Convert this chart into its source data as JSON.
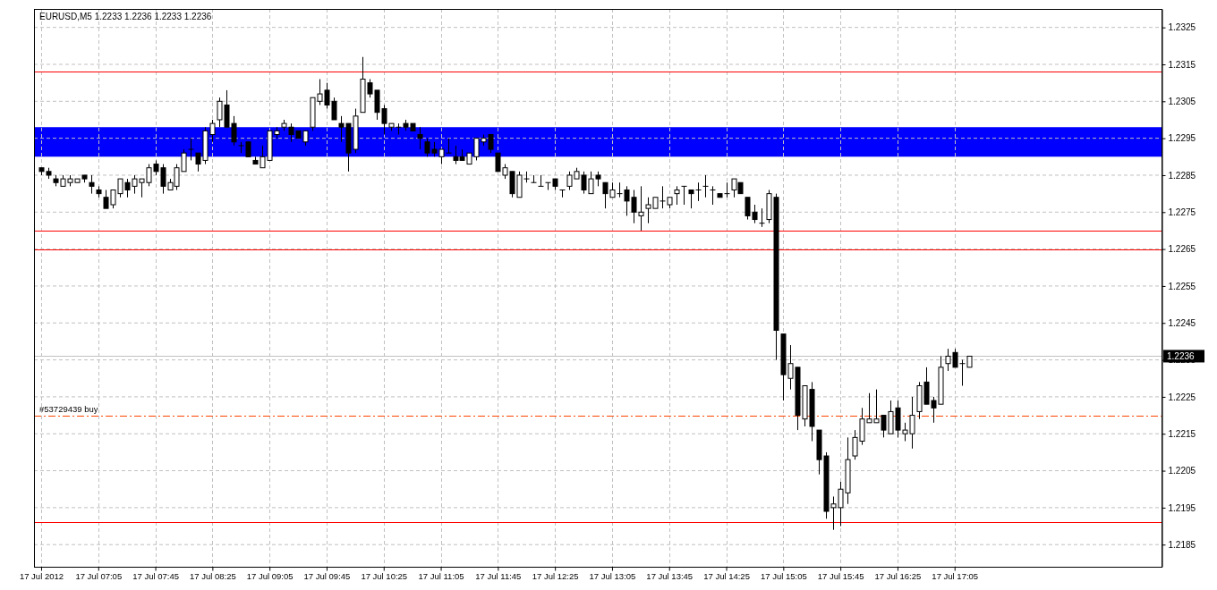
{
  "chart_data": {
    "type": "candlestick",
    "title": "EURUSD,M5  1.2233 1.2236 1.2233 1.2236",
    "x": [
      "2012-07-17T06:25",
      "2012-07-17T06:30",
      "2012-07-17T06:35",
      "2012-07-17T06:40",
      "2012-07-17T06:45",
      "2012-07-17T06:50",
      "2012-07-17T06:55",
      "2012-07-17T07:00",
      "2012-07-17T07:05",
      "2012-07-17T07:10",
      "2012-07-17T07:15",
      "2012-07-17T07:20",
      "2012-07-17T07:25",
      "2012-07-17T07:30",
      "2012-07-17T07:35",
      "2012-07-17T07:40",
      "2012-07-17T07:45",
      "2012-07-17T07:50",
      "2012-07-17T07:55",
      "2012-07-17T08:00",
      "2012-07-17T08:05",
      "2012-07-17T08:10",
      "2012-07-17T08:15",
      "2012-07-17T08:20",
      "2012-07-17T08:25",
      "2012-07-17T08:30",
      "2012-07-17T08:35",
      "2012-07-17T08:40",
      "2012-07-17T08:45",
      "2012-07-17T08:50",
      "2012-07-17T08:55",
      "2012-07-17T09:00",
      "2012-07-17T09:05",
      "2012-07-17T09:10",
      "2012-07-17T09:15",
      "2012-07-17T09:20",
      "2012-07-17T09:25",
      "2012-07-17T09:30",
      "2012-07-17T09:35",
      "2012-07-17T09:40",
      "2012-07-17T09:45",
      "2012-07-17T09:50",
      "2012-07-17T09:55",
      "2012-07-17T10:00",
      "2012-07-17T10:05",
      "2012-07-17T10:10",
      "2012-07-17T10:15",
      "2012-07-17T10:20",
      "2012-07-17T10:25",
      "2012-07-17T10:30",
      "2012-07-17T10:35",
      "2012-07-17T10:40",
      "2012-07-17T10:45",
      "2012-07-17T10:50",
      "2012-07-17T10:55",
      "2012-07-17T11:00",
      "2012-07-17T11:05",
      "2012-07-17T11:10",
      "2012-07-17T11:15",
      "2012-07-17T11:20",
      "2012-07-17T11:25",
      "2012-07-17T11:30",
      "2012-07-17T11:35",
      "2012-07-17T11:40",
      "2012-07-17T11:45",
      "2012-07-17T11:50",
      "2012-07-17T11:55",
      "2012-07-17T12:00",
      "2012-07-17T12:05",
      "2012-07-17T12:10",
      "2012-07-17T12:15",
      "2012-07-17T12:20",
      "2012-07-17T12:25",
      "2012-07-17T12:30",
      "2012-07-17T12:35",
      "2012-07-17T12:40",
      "2012-07-17T12:45",
      "2012-07-17T12:50",
      "2012-07-17T12:55",
      "2012-07-17T13:00",
      "2012-07-17T13:05",
      "2012-07-17T13:10",
      "2012-07-17T13:15",
      "2012-07-17T13:20",
      "2012-07-17T13:25",
      "2012-07-17T13:30",
      "2012-07-17T13:35",
      "2012-07-17T13:40",
      "2012-07-17T13:45",
      "2012-07-17T13:50",
      "2012-07-17T13:55",
      "2012-07-17T14:00",
      "2012-07-17T14:05",
      "2012-07-17T14:10",
      "2012-07-17T14:15",
      "2012-07-17T14:20",
      "2012-07-17T14:25",
      "2012-07-17T14:30",
      "2012-07-17T14:35",
      "2012-07-17T14:40",
      "2012-07-17T14:45",
      "2012-07-17T14:50",
      "2012-07-17T14:55",
      "2012-07-17T15:00",
      "2012-07-17T15:05",
      "2012-07-17T15:10",
      "2012-07-17T15:15",
      "2012-07-17T15:20",
      "2012-07-17T15:25",
      "2012-07-17T15:30",
      "2012-07-17T15:35",
      "2012-07-17T15:40",
      "2012-07-17T15:45",
      "2012-07-17T15:50",
      "2012-07-17T15:55",
      "2012-07-17T16:00",
      "2012-07-17T16:05",
      "2012-07-17T16:10",
      "2012-07-17T16:15",
      "2012-07-17T16:20",
      "2012-07-17T16:25",
      "2012-07-17T16:30",
      "2012-07-17T16:35",
      "2012-07-17T16:40",
      "2012-07-17T16:45",
      "2012-07-17T16:50",
      "2012-07-17T16:55",
      "2012-07-17T17:00",
      "2012-07-17T17:05",
      "2012-07-17T17:10",
      "2012-07-17T17:15"
    ],
    "ohlc": [
      [
        1.2287,
        1.2287,
        1.2285,
        1.2286
      ],
      [
        1.2286,
        1.2287,
        1.2284,
        1.2285
      ],
      [
        1.2284,
        1.2285,
        1.2282,
        1.2283
      ],
      [
        1.2282,
        1.2285,
        1.2282,
        1.2284
      ],
      [
        1.2283,
        1.2285,
        1.2282,
        1.2284
      ],
      [
        1.2283,
        1.2284,
        1.2283,
        1.2284
      ],
      [
        1.2285,
        1.2285,
        1.2283,
        1.2284
      ],
      [
        1.2283,
        1.2285,
        1.228,
        1.2282
      ],
      [
        1.2281,
        1.2282,
        1.2279,
        1.228
      ],
      [
        1.2279,
        1.2281,
        1.2276,
        1.2276
      ],
      [
        1.2277,
        1.2281,
        1.2276,
        1.2281
      ],
      [
        1.228,
        1.2284,
        1.2279,
        1.2284
      ],
      [
        1.2283,
        1.2284,
        1.2279,
        1.2281
      ],
      [
        1.2282,
        1.2285,
        1.228,
        1.2284
      ],
      [
        1.2283,
        1.2284,
        1.2279,
        1.2284
      ],
      [
        1.2283,
        1.2288,
        1.2282,
        1.2287
      ],
      [
        1.2288,
        1.2289,
        1.2285,
        1.2286
      ],
      [
        1.2287,
        1.2288,
        1.228,
        1.2282
      ],
      [
        1.2281,
        1.2284,
        1.2281,
        1.2283
      ],
      [
        1.2282,
        1.2288,
        1.2281,
        1.2287
      ],
      [
        1.2286,
        1.2292,
        1.2286,
        1.2291
      ],
      [
        1.2292,
        1.2295,
        1.2289,
        1.2292
      ],
      [
        1.2291,
        1.2291,
        1.2286,
        1.2288
      ],
      [
        1.2289,
        1.2298,
        1.2288,
        1.2297
      ],
      [
        1.2296,
        1.23,
        1.2294,
        1.2299
      ],
      [
        1.23,
        1.2306,
        1.2298,
        1.2305
      ],
      [
        1.2304,
        1.2308,
        1.2298,
        1.2298
      ],
      [
        1.2299,
        1.2301,
        1.2293,
        1.2294
      ],
      [
        1.2293,
        1.2294,
        1.2291,
        1.2293
      ],
      [
        1.2294,
        1.2294,
        1.229,
        1.229
      ],
      [
        1.2289,
        1.229,
        1.2288,
        1.2288
      ],
      [
        1.2287,
        1.2293,
        1.2287,
        1.229
      ],
      [
        1.2289,
        1.2297,
        1.2289,
        1.2297
      ],
      [
        1.2296,
        1.2298,
        1.2295,
        1.2297
      ],
      [
        1.2298,
        1.23,
        1.2297,
        1.2299
      ],
      [
        1.2298,
        1.2299,
        1.2294,
        1.2296
      ],
      [
        1.2297,
        1.2297,
        1.2295,
        1.2295
      ],
      [
        1.2294,
        1.2297,
        1.2293,
        1.2297
      ],
      [
        1.2298,
        1.2306,
        1.2297,
        1.2306
      ],
      [
        1.2305,
        1.2311,
        1.2304,
        1.2307
      ],
      [
        1.2308,
        1.231,
        1.2303,
        1.2304
      ],
      [
        1.2305,
        1.2306,
        1.23,
        1.23
      ],
      [
        1.2299,
        1.2301,
        1.2294,
        1.2298
      ],
      [
        1.2299,
        1.2299,
        1.2286,
        1.2291
      ],
      [
        1.2292,
        1.2303,
        1.2291,
        1.2301
      ],
      [
        1.2302,
        1.2317,
        1.2302,
        1.2311
      ],
      [
        1.231,
        1.2311,
        1.2306,
        1.2307
      ],
      [
        1.2308,
        1.2308,
        1.23,
        1.2302
      ],
      [
        1.2303,
        1.2304,
        1.2296,
        1.2299
      ],
      [
        1.2298,
        1.2299,
        1.2297,
        1.2299
      ],
      [
        1.2298,
        1.2299,
        1.2296,
        1.2298
      ],
      [
        1.2299,
        1.23,
        1.2297,
        1.2298
      ],
      [
        1.2299,
        1.2299,
        1.2297,
        1.2297
      ],
      [
        1.2296,
        1.2298,
        1.2292,
        1.2295
      ],
      [
        1.2294,
        1.2295,
        1.229,
        1.2291
      ],
      [
        1.2292,
        1.2294,
        1.229,
        1.2291
      ],
      [
        1.229,
        1.2292,
        1.2288,
        1.2292
      ],
      [
        1.2291,
        1.2295,
        1.2291,
        1.2291
      ],
      [
        1.229,
        1.2293,
        1.2288,
        1.2289
      ],
      [
        1.229,
        1.2292,
        1.2289,
        1.2289
      ],
      [
        1.2288,
        1.2291,
        1.2288,
        1.2291
      ],
      [
        1.229,
        1.2295,
        1.2289,
        1.2295
      ],
      [
        1.2294,
        1.2296,
        1.2293,
        1.2295
      ],
      [
        1.2296,
        1.2296,
        1.2291,
        1.2292
      ],
      [
        1.2291,
        1.2291,
        1.2286,
        1.2286
      ],
      [
        1.2285,
        1.2288,
        1.2284,
        1.2287
      ],
      [
        1.2286,
        1.2286,
        1.2279,
        1.228
      ],
      [
        1.2279,
        1.2286,
        1.2279,
        1.2285
      ],
      [
        1.2284,
        1.2286,
        1.2283,
        1.2284
      ],
      [
        1.2283,
        1.2285,
        1.2283,
        1.2283
      ],
      [
        1.2282,
        1.2285,
        1.2282,
        1.2282
      ],
      [
        1.2283,
        1.2283,
        1.2281,
        1.2283
      ],
      [
        1.2284,
        1.2284,
        1.2281,
        1.2282
      ],
      [
        1.2281,
        1.2281,
        1.2279,
        1.2281
      ],
      [
        1.2282,
        1.2286,
        1.2281,
        1.2285
      ],
      [
        1.2284,
        1.2287,
        1.2284,
        1.2286
      ],
      [
        1.2285,
        1.2286,
        1.228,
        1.2281
      ],
      [
        1.228,
        1.2286,
        1.228,
        1.2284
      ],
      [
        1.2285,
        1.2286,
        1.2282,
        1.2284
      ],
      [
        1.2283,
        1.2283,
        1.2276,
        1.228
      ],
      [
        1.2279,
        1.2283,
        1.2279,
        1.2281
      ],
      [
        1.228,
        1.2283,
        1.2279,
        1.228
      ],
      [
        1.2281,
        1.2282,
        1.2274,
        1.2278
      ],
      [
        1.2279,
        1.2281,
        1.2272,
        1.2275
      ],
      [
        1.2274,
        1.2282,
        1.227,
        1.2275
      ],
      [
        1.2276,
        1.2279,
        1.2272,
        1.2277
      ],
      [
        1.2276,
        1.2279,
        1.2276,
        1.2279
      ],
      [
        1.2278,
        1.2282,
        1.2276,
        1.2278
      ],
      [
        1.2277,
        1.2279,
        1.2276,
        1.2279
      ],
      [
        1.228,
        1.2282,
        1.2277,
        1.2281
      ],
      [
        1.2282,
        1.2282,
        1.2277,
        1.2282
      ],
      [
        1.2281,
        1.2281,
        1.2276,
        1.228
      ],
      [
        1.2281,
        1.2283,
        1.2278,
        1.2281
      ],
      [
        1.2282,
        1.2285,
        1.2279,
        1.2282
      ],
      [
        1.2281,
        1.2282,
        1.2277,
        1.2281
      ],
      [
        1.228,
        1.228,
        1.2279,
        1.2279
      ],
      [
        1.228,
        1.2283,
        1.2279,
        1.228
      ],
      [
        1.2281,
        1.2284,
        1.2279,
        1.2284
      ],
      [
        1.2283,
        1.2283,
        1.228,
        1.228
      ],
      [
        1.2279,
        1.2279,
        1.2273,
        1.2274
      ],
      [
        1.2275,
        1.2277,
        1.2272,
        1.2273
      ],
      [
        1.2272,
        1.2276,
        1.2271,
        1.2272
      ],
      [
        1.2273,
        1.2281,
        1.2272,
        1.228
      ],
      [
        1.2279,
        1.228,
        1.2235,
        1.2243
      ],
      [
        1.2242,
        1.2242,
        1.2224,
        1.2231
      ],
      [
        1.223,
        1.2239,
        1.2227,
        1.2234
      ],
      [
        1.2233,
        1.2233,
        1.2216,
        1.222
      ],
      [
        1.2219,
        1.2228,
        1.2217,
        1.2228
      ],
      [
        1.2227,
        1.2229,
        1.2213,
        1.2217
      ],
      [
        1.2216,
        1.2216,
        1.2204,
        1.2208
      ],
      [
        1.2209,
        1.221,
        1.2192,
        1.2194
      ],
      [
        1.2195,
        1.2198,
        1.2189,
        1.2196
      ],
      [
        1.2195,
        1.2202,
        1.219,
        1.22
      ],
      [
        1.2199,
        1.2214,
        1.2196,
        1.2208
      ],
      [
        1.2209,
        1.2216,
        1.2208,
        1.2214
      ],
      [
        1.2213,
        1.2222,
        1.2212,
        1.2219
      ],
      [
        1.2218,
        1.2226,
        1.2218,
        1.2219
      ],
      [
        1.2218,
        1.2227,
        1.2218,
        1.2219
      ],
      [
        1.222,
        1.222,
        1.2214,
        1.2216
      ],
      [
        1.2215,
        1.2224,
        1.2215,
        1.2221
      ],
      [
        1.2222,
        1.2224,
        1.2214,
        1.2216
      ],
      [
        1.2215,
        1.2218,
        1.2213,
        1.2216
      ],
      [
        1.2215,
        1.2225,
        1.2211,
        1.222
      ],
      [
        1.2221,
        1.2229,
        1.2219,
        1.2228
      ],
      [
        1.2229,
        1.2233,
        1.2223,
        1.2223
      ],
      [
        1.2224,
        1.2225,
        1.2218,
        1.2222
      ],
      [
        1.2223,
        1.2236,
        1.2223,
        1.2233
      ],
      [
        1.2234,
        1.2238,
        1.2232,
        1.2236
      ],
      [
        1.2237,
        1.2238,
        1.2233,
        1.2233
      ],
      [
        1.2234,
        1.2235,
        1.2228,
        1.2234
      ],
      [
        1.2233,
        1.2236,
        1.2233,
        1.2236
      ]
    ],
    "xlim": [
      "2012-07-17T06:20",
      "2012-07-17T19:30"
    ],
    "xticks": [
      {
        "value": "2012-07-17T06:25",
        "label": "17 Jul 2012"
      },
      {
        "value": "2012-07-17T07:05",
        "label": "17 Jul 07:05"
      },
      {
        "value": "2012-07-17T07:45",
        "label": "17 Jul 07:45"
      },
      {
        "value": "2012-07-17T08:25",
        "label": "17 Jul 08:25"
      },
      {
        "value": "2012-07-17T09:05",
        "label": "17 Jul 09:05"
      },
      {
        "value": "2012-07-17T09:45",
        "label": "17 Jul 09:45"
      },
      {
        "value": "2012-07-17T10:25",
        "label": "17 Jul 10:25"
      },
      {
        "value": "2012-07-17T11:05",
        "label": "17 Jul 11:05"
      },
      {
        "value": "2012-07-17T11:45",
        "label": "17 Jul 11:45"
      },
      {
        "value": "2012-07-17T12:25",
        "label": "17 Jul 12:25"
      },
      {
        "value": "2012-07-17T13:05",
        "label": "17 Jul 13:05"
      },
      {
        "value": "2012-07-17T13:45",
        "label": "17 Jul 13:45"
      },
      {
        "value": "2012-07-17T14:25",
        "label": "17 Jul 14:25"
      },
      {
        "value": "2012-07-17T15:05",
        "label": "17 Jul 15:05"
      },
      {
        "value": "2012-07-17T15:45",
        "label": "17 Jul 15:45"
      },
      {
        "value": "2012-07-17T16:25",
        "label": "17 Jul 16:25"
      },
      {
        "value": "2012-07-17T17:05",
        "label": "17 Jul 17:05"
      }
    ],
    "ylim": [
      1.2179,
      1.233
    ],
    "yticks": [
      1.2185,
      1.2195,
      1.2205,
      1.2215,
      1.2225,
      1.2235,
      1.2245,
      1.2255,
      1.2265,
      1.2275,
      1.2285,
      1.2295,
      1.2305,
      1.2315,
      1.2325
    ],
    "grid": true,
    "ref_lines": [
      {
        "axis": "y",
        "value": 1.2313,
        "color": "#ff0000"
      },
      {
        "axis": "y",
        "value": 1.227,
        "color": "#ff0000"
      },
      {
        "axis": "y",
        "value": 1.2265,
        "color": "#ff0000"
      },
      {
        "axis": "y",
        "value": 1.2191,
        "color": "#ff0000"
      },
      {
        "axis": "y",
        "value": 1.2236,
        "color": "#c0c0c0",
        "label": "1.2236"
      },
      {
        "axis": "y",
        "value": 1.222,
        "color": "#ff4500",
        "line_style": "dashed",
        "label": "#53729439 buy"
      }
    ],
    "bands": [
      {
        "axis": "y",
        "from": 1.229,
        "to": 1.2298,
        "color": "#0000ff"
      }
    ]
  }
}
